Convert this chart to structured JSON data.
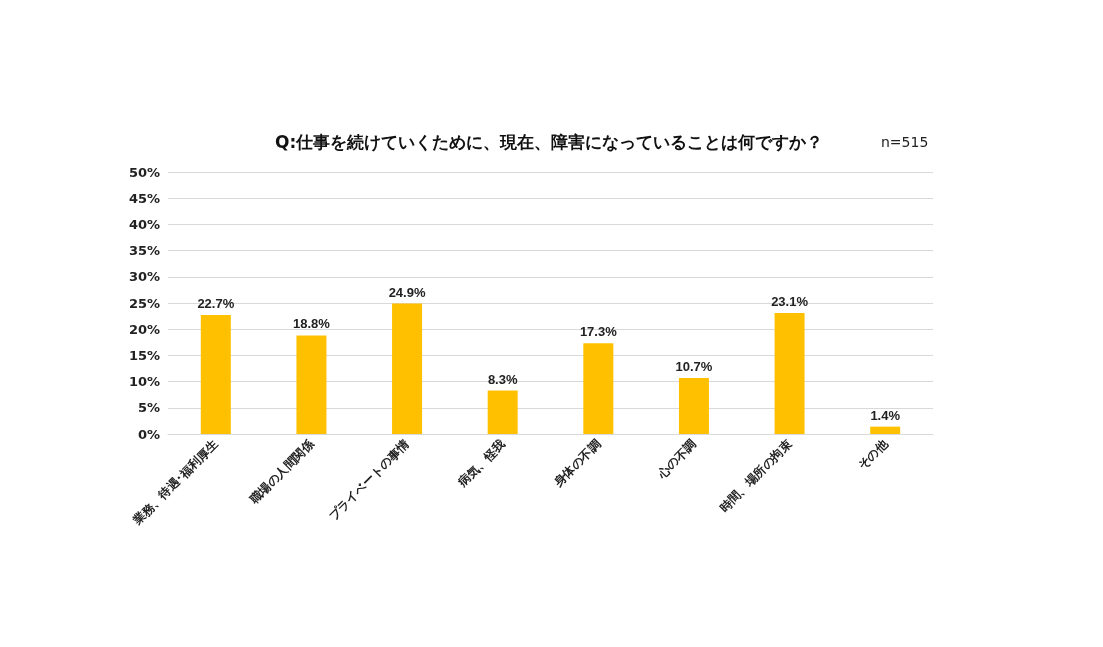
{
  "chart_data": {
    "type": "bar",
    "title": "Q:仕事を続けていくために、現在、障害になっていることは何ですか？",
    "subtitle": "n=515",
    "categories": [
      "業務、待遇･福利厚生",
      "職場の人間関係",
      "プライベートの事情",
      "病気、怪我",
      "身体の不調",
      "心の不調",
      "時間、場所の拘束",
      "その他"
    ],
    "values": [
      22.7,
      18.8,
      24.9,
      8.3,
      17.3,
      10.7,
      23.1,
      1.4
    ],
    "value_labels": [
      "22.7%",
      "18.8%",
      "24.9%",
      "8.3%",
      "17.3%",
      "10.7%",
      "23.1%",
      "1.4%"
    ],
    "color": "#ffc000",
    "ylim": [
      0,
      50
    ],
    "yticks": [
      {
        "value": 0,
        "label": "0%"
      },
      {
        "value": 5,
        "label": "5%"
      },
      {
        "value": 10,
        "label": "10%"
      },
      {
        "value": 15,
        "label": "15%"
      },
      {
        "value": 20,
        "label": "20%"
      },
      {
        "value": 25,
        "label": "25%"
      },
      {
        "value": 30,
        "label": "30%"
      },
      {
        "value": 35,
        "label": "35%"
      },
      {
        "value": 40,
        "label": "40%"
      },
      {
        "value": 45,
        "label": "45%"
      },
      {
        "value": 50,
        "label": "50%"
      }
    ],
    "grid": "y"
  }
}
